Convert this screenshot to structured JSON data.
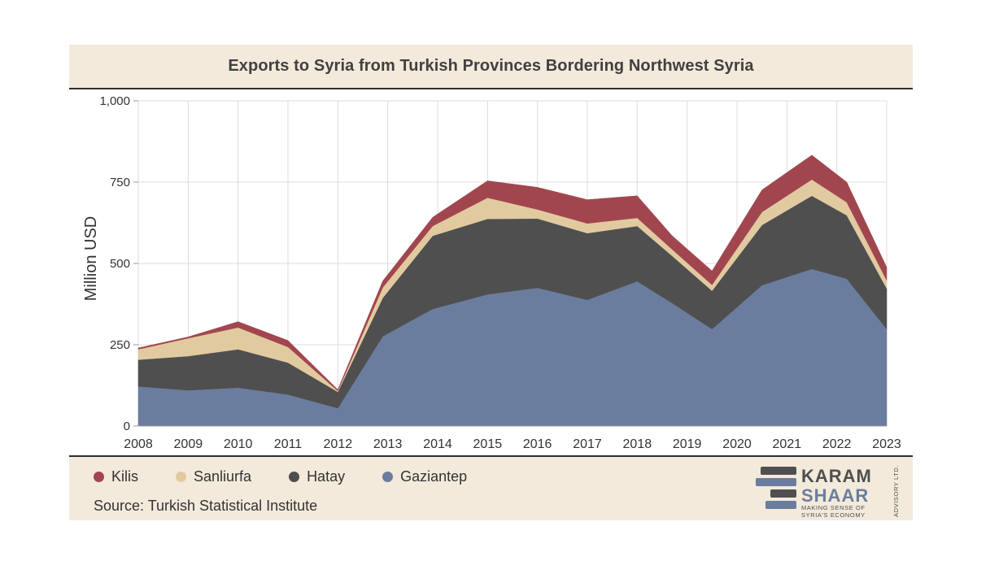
{
  "chart_data": {
    "type": "area",
    "stacked": true,
    "title": "Exports to Syria from Turkish Provinces Bordering Northwest Syria",
    "ylabel": "Million USD",
    "xlabel": "",
    "ylim": [
      0,
      1000
    ],
    "yticks": [
      "0",
      "250",
      "500",
      "750",
      "1,000"
    ],
    "grid": true,
    "legend_position": "bottom-left",
    "x_labels": [
      "2008",
      "2009",
      "2010",
      "2011",
      "2012",
      "2013",
      "2014",
      "2015",
      "2016",
      "2017",
      "2018",
      "2019",
      "2020",
      "2021",
      "2022",
      "2023"
    ],
    "x": [
      2008.0,
      2009.0,
      2010.0,
      2011.0,
      2012.0,
      2012.9,
      2013.9,
      2015.0,
      2016.0,
      2017.0,
      2018.0,
      2018.7,
      2019.5,
      2020.5,
      2021.5,
      2022.2,
      2023.0
    ],
    "series": [
      {
        "name": "Gaziantep",
        "color": "#6b7d9e",
        "values": [
          122,
          110,
          118,
          97,
          55,
          276,
          360,
          405,
          425,
          388,
          445,
          378,
          298,
          433,
          483,
          453,
          298
        ]
      },
      {
        "name": "Hatay",
        "color": "#4f4f4f",
        "values": [
          82,
          105,
          118,
          98,
          50,
          118,
          225,
          232,
          213,
          205,
          170,
          145,
          118,
          185,
          225,
          195,
          125
        ]
      },
      {
        "name": "Sanliurfa",
        "color": "#e2caa0",
        "values": [
          32,
          55,
          67,
          48,
          3,
          32,
          30,
          65,
          28,
          30,
          25,
          20,
          18,
          40,
          50,
          40,
          25
        ]
      },
      {
        "name": "Kilis",
        "color": "#a1464f",
        "values": [
          4,
          4,
          18,
          20,
          4,
          20,
          27,
          52,
          68,
          73,
          68,
          42,
          43,
          68,
          75,
          62,
          40
        ]
      }
    ]
  },
  "legend": {
    "items": [
      {
        "label": "Kilis",
        "color": "#a1464f"
      },
      {
        "label": "Sanliurfa",
        "color": "#e2caa0"
      },
      {
        "label": "Hatay",
        "color": "#4f4f4f"
      },
      {
        "label": "Gaziantep",
        "color": "#6b7d9e"
      }
    ]
  },
  "source": "Source: Turkish Statistical Institute",
  "logo": {
    "line1": "KARAM",
    "line2": "SHAAR",
    "tagline1": "MAKING SENSE OF",
    "tagline2": "SYRIA'S ECONOMY",
    "side": "ADVISORY LTD."
  }
}
